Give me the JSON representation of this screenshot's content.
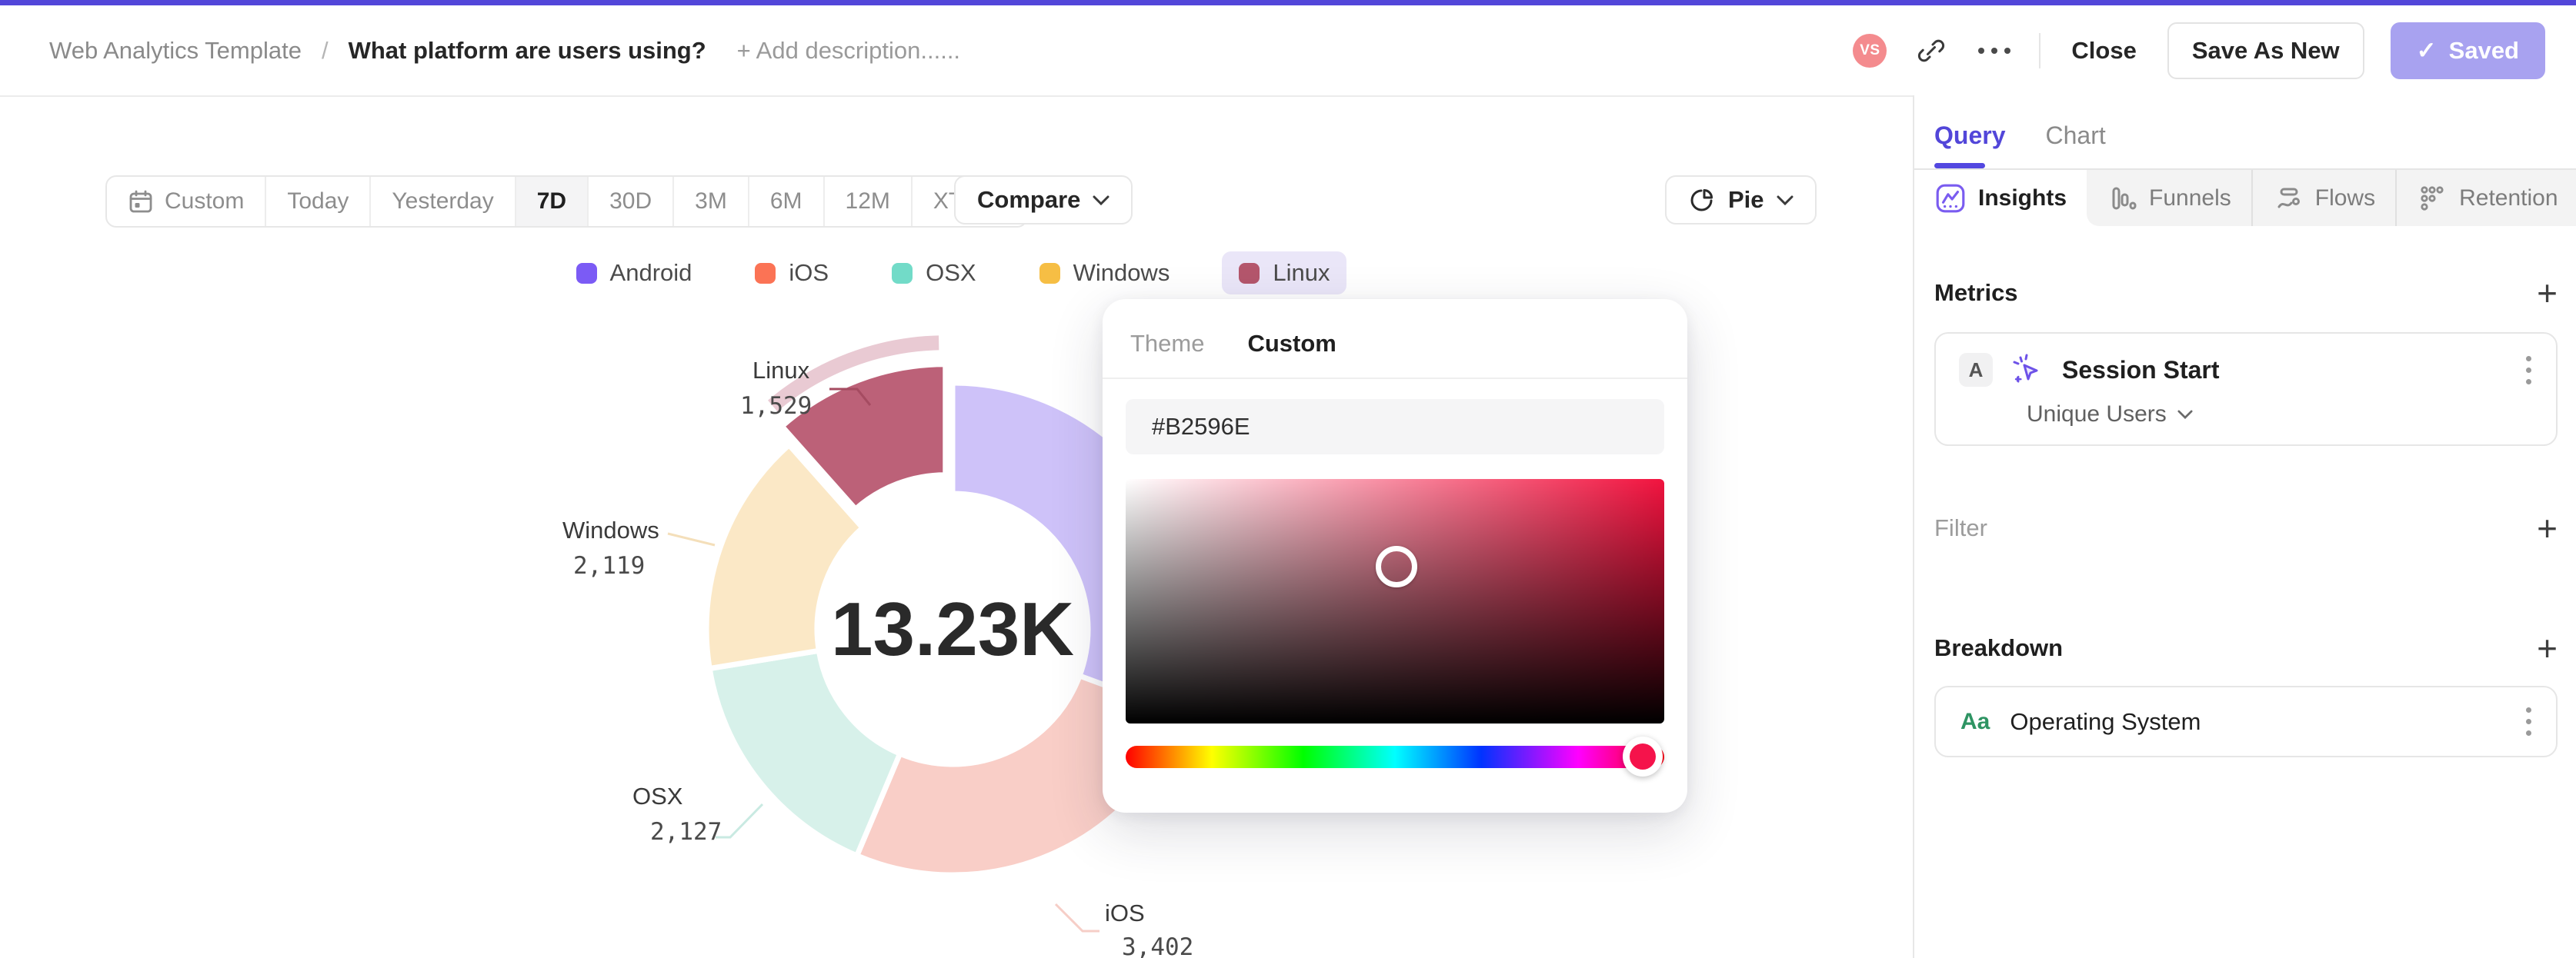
{
  "header": {
    "breadcrumb": {
      "root": "Web Analytics Template",
      "separator": "/",
      "title": "What platform are users using?",
      "add_description": "+ Add description......"
    },
    "actions": {
      "avatar_initials": "VS",
      "close_label": "Close",
      "save_as_new_label": "Save As New",
      "saved_label": "Saved",
      "saved_check": "✓"
    }
  },
  "toolbar": {
    "date_ranges": [
      {
        "label": "Custom",
        "icon": "calendar",
        "active": false
      },
      {
        "label": "Today",
        "active": false
      },
      {
        "label": "Yesterday",
        "active": false
      },
      {
        "label": "7D",
        "active": true
      },
      {
        "label": "30D",
        "active": false
      },
      {
        "label": "3M",
        "active": false
      },
      {
        "label": "6M",
        "active": false
      },
      {
        "label": "12M",
        "active": false
      },
      {
        "label": "XTD",
        "active": false,
        "chevron": true
      }
    ],
    "compare_label": "Compare",
    "chart_type_label": "Pie"
  },
  "legend": {
    "items": [
      {
        "label": "Android",
        "color": "#7B5BF5",
        "selected": false
      },
      {
        "label": "iOS",
        "color": "#FB7355",
        "selected": false
      },
      {
        "label": "OSX",
        "color": "#72DBC8",
        "selected": false
      },
      {
        "label": "Windows",
        "color": "#F6BE44",
        "selected": false
      },
      {
        "label": "Linux",
        "color": "#B4566C",
        "selected": true
      }
    ]
  },
  "chart_data": {
    "type": "pie",
    "center_label": "13.23K",
    "categories": [
      "Android",
      "iOS",
      "OSX",
      "Windows",
      "Linux"
    ],
    "values": [
      4053,
      3402,
      2127,
      2119,
      1529
    ],
    "slice_colors": [
      "#CEC2F9",
      "#F9CEC7",
      "#D7F1EA",
      "#FBE8C6",
      "#BC6178"
    ],
    "highlighted_category": "Linux",
    "highlight_ring_color": "#E9CAD3",
    "labeled_slices": [
      "iOS",
      "OSX",
      "Windows",
      "Linux"
    ],
    "legend_position": "top"
  },
  "color_picker": {
    "tabs": [
      {
        "label": "Theme",
        "active": false
      },
      {
        "label": "Custom",
        "active": true
      }
    ],
    "hex_value": "#B2596E",
    "hue_handle_color": "#F5134B"
  },
  "sidebar": {
    "tabs": [
      {
        "label": "Query",
        "active": true
      },
      {
        "label": "Chart",
        "active": false
      }
    ],
    "view_tabs": [
      {
        "label": "Insights",
        "icon": "insights",
        "active": true
      },
      {
        "label": "Funnels",
        "icon": "funnels",
        "active": false
      },
      {
        "label": "Flows",
        "icon": "flows",
        "active": false
      },
      {
        "label": "Retention",
        "icon": "retention",
        "active": false
      }
    ],
    "metrics": {
      "title": "Metrics",
      "add_label": "+",
      "items": [
        {
          "badge": "A",
          "label": "Session Start",
          "aggregation": "Unique Users"
        }
      ]
    },
    "filter": {
      "title": "Filter",
      "add_label": "+"
    },
    "breakdown": {
      "title": "Breakdown",
      "add_label": "+",
      "items": [
        {
          "icon": "Aa",
          "label": "Operating System"
        }
      ]
    }
  }
}
